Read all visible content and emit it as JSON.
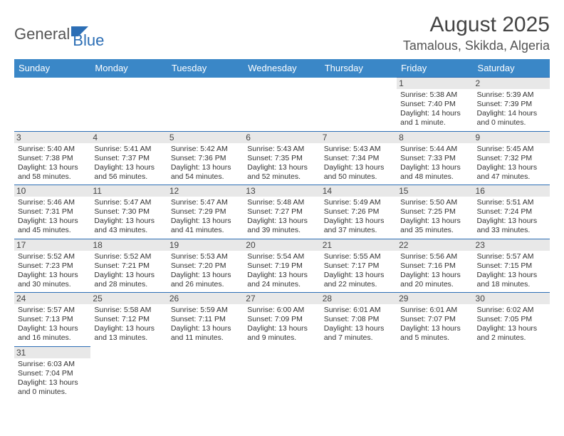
{
  "logo": {
    "part1": "General",
    "part2": "Blue"
  },
  "title": "August 2025",
  "location": "Tamalous, Skikda, Algeria",
  "day_headers": [
    "Sunday",
    "Monday",
    "Tuesday",
    "Wednesday",
    "Thursday",
    "Friday",
    "Saturday"
  ],
  "colors": {
    "header_bg": "#3a87c7",
    "header_text": "#ffffff",
    "border": "#2c6eb5",
    "daynum_bg": "#e8e8e8",
    "text": "#333333"
  },
  "weeks": [
    [
      null,
      null,
      null,
      null,
      null,
      {
        "n": "1",
        "sr": "Sunrise: 5:38 AM",
        "ss": "Sunset: 7:40 PM",
        "d1": "Daylight: 14 hours",
        "d2": "and 1 minute."
      },
      {
        "n": "2",
        "sr": "Sunrise: 5:39 AM",
        "ss": "Sunset: 7:39 PM",
        "d1": "Daylight: 14 hours",
        "d2": "and 0 minutes."
      }
    ],
    [
      {
        "n": "3",
        "sr": "Sunrise: 5:40 AM",
        "ss": "Sunset: 7:38 PM",
        "d1": "Daylight: 13 hours",
        "d2": "and 58 minutes."
      },
      {
        "n": "4",
        "sr": "Sunrise: 5:41 AM",
        "ss": "Sunset: 7:37 PM",
        "d1": "Daylight: 13 hours",
        "d2": "and 56 minutes."
      },
      {
        "n": "5",
        "sr": "Sunrise: 5:42 AM",
        "ss": "Sunset: 7:36 PM",
        "d1": "Daylight: 13 hours",
        "d2": "and 54 minutes."
      },
      {
        "n": "6",
        "sr": "Sunrise: 5:43 AM",
        "ss": "Sunset: 7:35 PM",
        "d1": "Daylight: 13 hours",
        "d2": "and 52 minutes."
      },
      {
        "n": "7",
        "sr": "Sunrise: 5:43 AM",
        "ss": "Sunset: 7:34 PM",
        "d1": "Daylight: 13 hours",
        "d2": "and 50 minutes."
      },
      {
        "n": "8",
        "sr": "Sunrise: 5:44 AM",
        "ss": "Sunset: 7:33 PM",
        "d1": "Daylight: 13 hours",
        "d2": "and 48 minutes."
      },
      {
        "n": "9",
        "sr": "Sunrise: 5:45 AM",
        "ss": "Sunset: 7:32 PM",
        "d1": "Daylight: 13 hours",
        "d2": "and 47 minutes."
      }
    ],
    [
      {
        "n": "10",
        "sr": "Sunrise: 5:46 AM",
        "ss": "Sunset: 7:31 PM",
        "d1": "Daylight: 13 hours",
        "d2": "and 45 minutes."
      },
      {
        "n": "11",
        "sr": "Sunrise: 5:47 AM",
        "ss": "Sunset: 7:30 PM",
        "d1": "Daylight: 13 hours",
        "d2": "and 43 minutes."
      },
      {
        "n": "12",
        "sr": "Sunrise: 5:47 AM",
        "ss": "Sunset: 7:29 PM",
        "d1": "Daylight: 13 hours",
        "d2": "and 41 minutes."
      },
      {
        "n": "13",
        "sr": "Sunrise: 5:48 AM",
        "ss": "Sunset: 7:27 PM",
        "d1": "Daylight: 13 hours",
        "d2": "and 39 minutes."
      },
      {
        "n": "14",
        "sr": "Sunrise: 5:49 AM",
        "ss": "Sunset: 7:26 PM",
        "d1": "Daylight: 13 hours",
        "d2": "and 37 minutes."
      },
      {
        "n": "15",
        "sr": "Sunrise: 5:50 AM",
        "ss": "Sunset: 7:25 PM",
        "d1": "Daylight: 13 hours",
        "d2": "and 35 minutes."
      },
      {
        "n": "16",
        "sr": "Sunrise: 5:51 AM",
        "ss": "Sunset: 7:24 PM",
        "d1": "Daylight: 13 hours",
        "d2": "and 33 minutes."
      }
    ],
    [
      {
        "n": "17",
        "sr": "Sunrise: 5:52 AM",
        "ss": "Sunset: 7:23 PM",
        "d1": "Daylight: 13 hours",
        "d2": "and 30 minutes."
      },
      {
        "n": "18",
        "sr": "Sunrise: 5:52 AM",
        "ss": "Sunset: 7:21 PM",
        "d1": "Daylight: 13 hours",
        "d2": "and 28 minutes."
      },
      {
        "n": "19",
        "sr": "Sunrise: 5:53 AM",
        "ss": "Sunset: 7:20 PM",
        "d1": "Daylight: 13 hours",
        "d2": "and 26 minutes."
      },
      {
        "n": "20",
        "sr": "Sunrise: 5:54 AM",
        "ss": "Sunset: 7:19 PM",
        "d1": "Daylight: 13 hours",
        "d2": "and 24 minutes."
      },
      {
        "n": "21",
        "sr": "Sunrise: 5:55 AM",
        "ss": "Sunset: 7:17 PM",
        "d1": "Daylight: 13 hours",
        "d2": "and 22 minutes."
      },
      {
        "n": "22",
        "sr": "Sunrise: 5:56 AM",
        "ss": "Sunset: 7:16 PM",
        "d1": "Daylight: 13 hours",
        "d2": "and 20 minutes."
      },
      {
        "n": "23",
        "sr": "Sunrise: 5:57 AM",
        "ss": "Sunset: 7:15 PM",
        "d1": "Daylight: 13 hours",
        "d2": "and 18 minutes."
      }
    ],
    [
      {
        "n": "24",
        "sr": "Sunrise: 5:57 AM",
        "ss": "Sunset: 7:13 PM",
        "d1": "Daylight: 13 hours",
        "d2": "and 16 minutes."
      },
      {
        "n": "25",
        "sr": "Sunrise: 5:58 AM",
        "ss": "Sunset: 7:12 PM",
        "d1": "Daylight: 13 hours",
        "d2": "and 13 minutes."
      },
      {
        "n": "26",
        "sr": "Sunrise: 5:59 AM",
        "ss": "Sunset: 7:11 PM",
        "d1": "Daylight: 13 hours",
        "d2": "and 11 minutes."
      },
      {
        "n": "27",
        "sr": "Sunrise: 6:00 AM",
        "ss": "Sunset: 7:09 PM",
        "d1": "Daylight: 13 hours",
        "d2": "and 9 minutes."
      },
      {
        "n": "28",
        "sr": "Sunrise: 6:01 AM",
        "ss": "Sunset: 7:08 PM",
        "d1": "Daylight: 13 hours",
        "d2": "and 7 minutes."
      },
      {
        "n": "29",
        "sr": "Sunrise: 6:01 AM",
        "ss": "Sunset: 7:07 PM",
        "d1": "Daylight: 13 hours",
        "d2": "and 5 minutes."
      },
      {
        "n": "30",
        "sr": "Sunrise: 6:02 AM",
        "ss": "Sunset: 7:05 PM",
        "d1": "Daylight: 13 hours",
        "d2": "and 2 minutes."
      }
    ],
    [
      {
        "n": "31",
        "sr": "Sunrise: 6:03 AM",
        "ss": "Sunset: 7:04 PM",
        "d1": "Daylight: 13 hours",
        "d2": "and 0 minutes."
      },
      null,
      null,
      null,
      null,
      null,
      null
    ]
  ]
}
